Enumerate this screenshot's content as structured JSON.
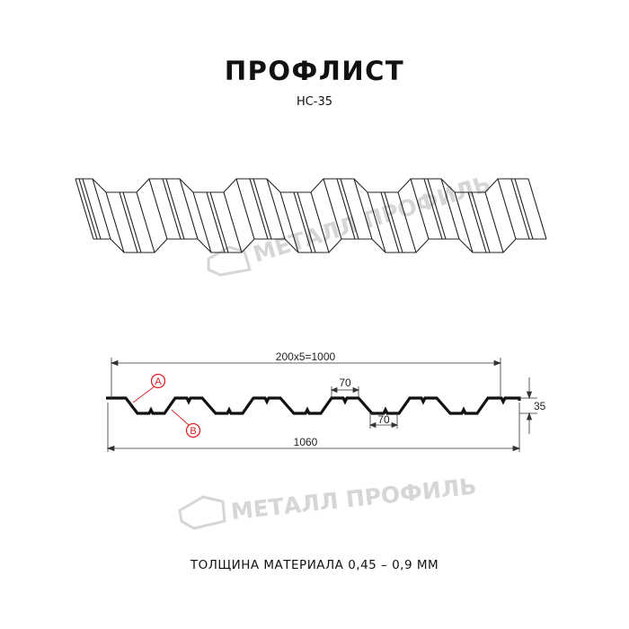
{
  "header": {
    "title": "ПРОФЛИСТ",
    "subtitle": "НС-35"
  },
  "watermark": {
    "text": "МЕТАЛЛ ПРОФИЛЬ",
    "color": "#d6d6d6"
  },
  "drawing": {
    "pitch_label": "200x5=1000",
    "total_width_label": "1060",
    "top_flange_label": "70",
    "bottom_flange_label": "70",
    "height_label": "35",
    "marker_a": "A",
    "marker_b": "B",
    "marker_color": "#e02020"
  },
  "footer": {
    "thickness": "ТОЛЩИНА МАТЕРИАЛА 0,45 – 0,9 ММ"
  }
}
